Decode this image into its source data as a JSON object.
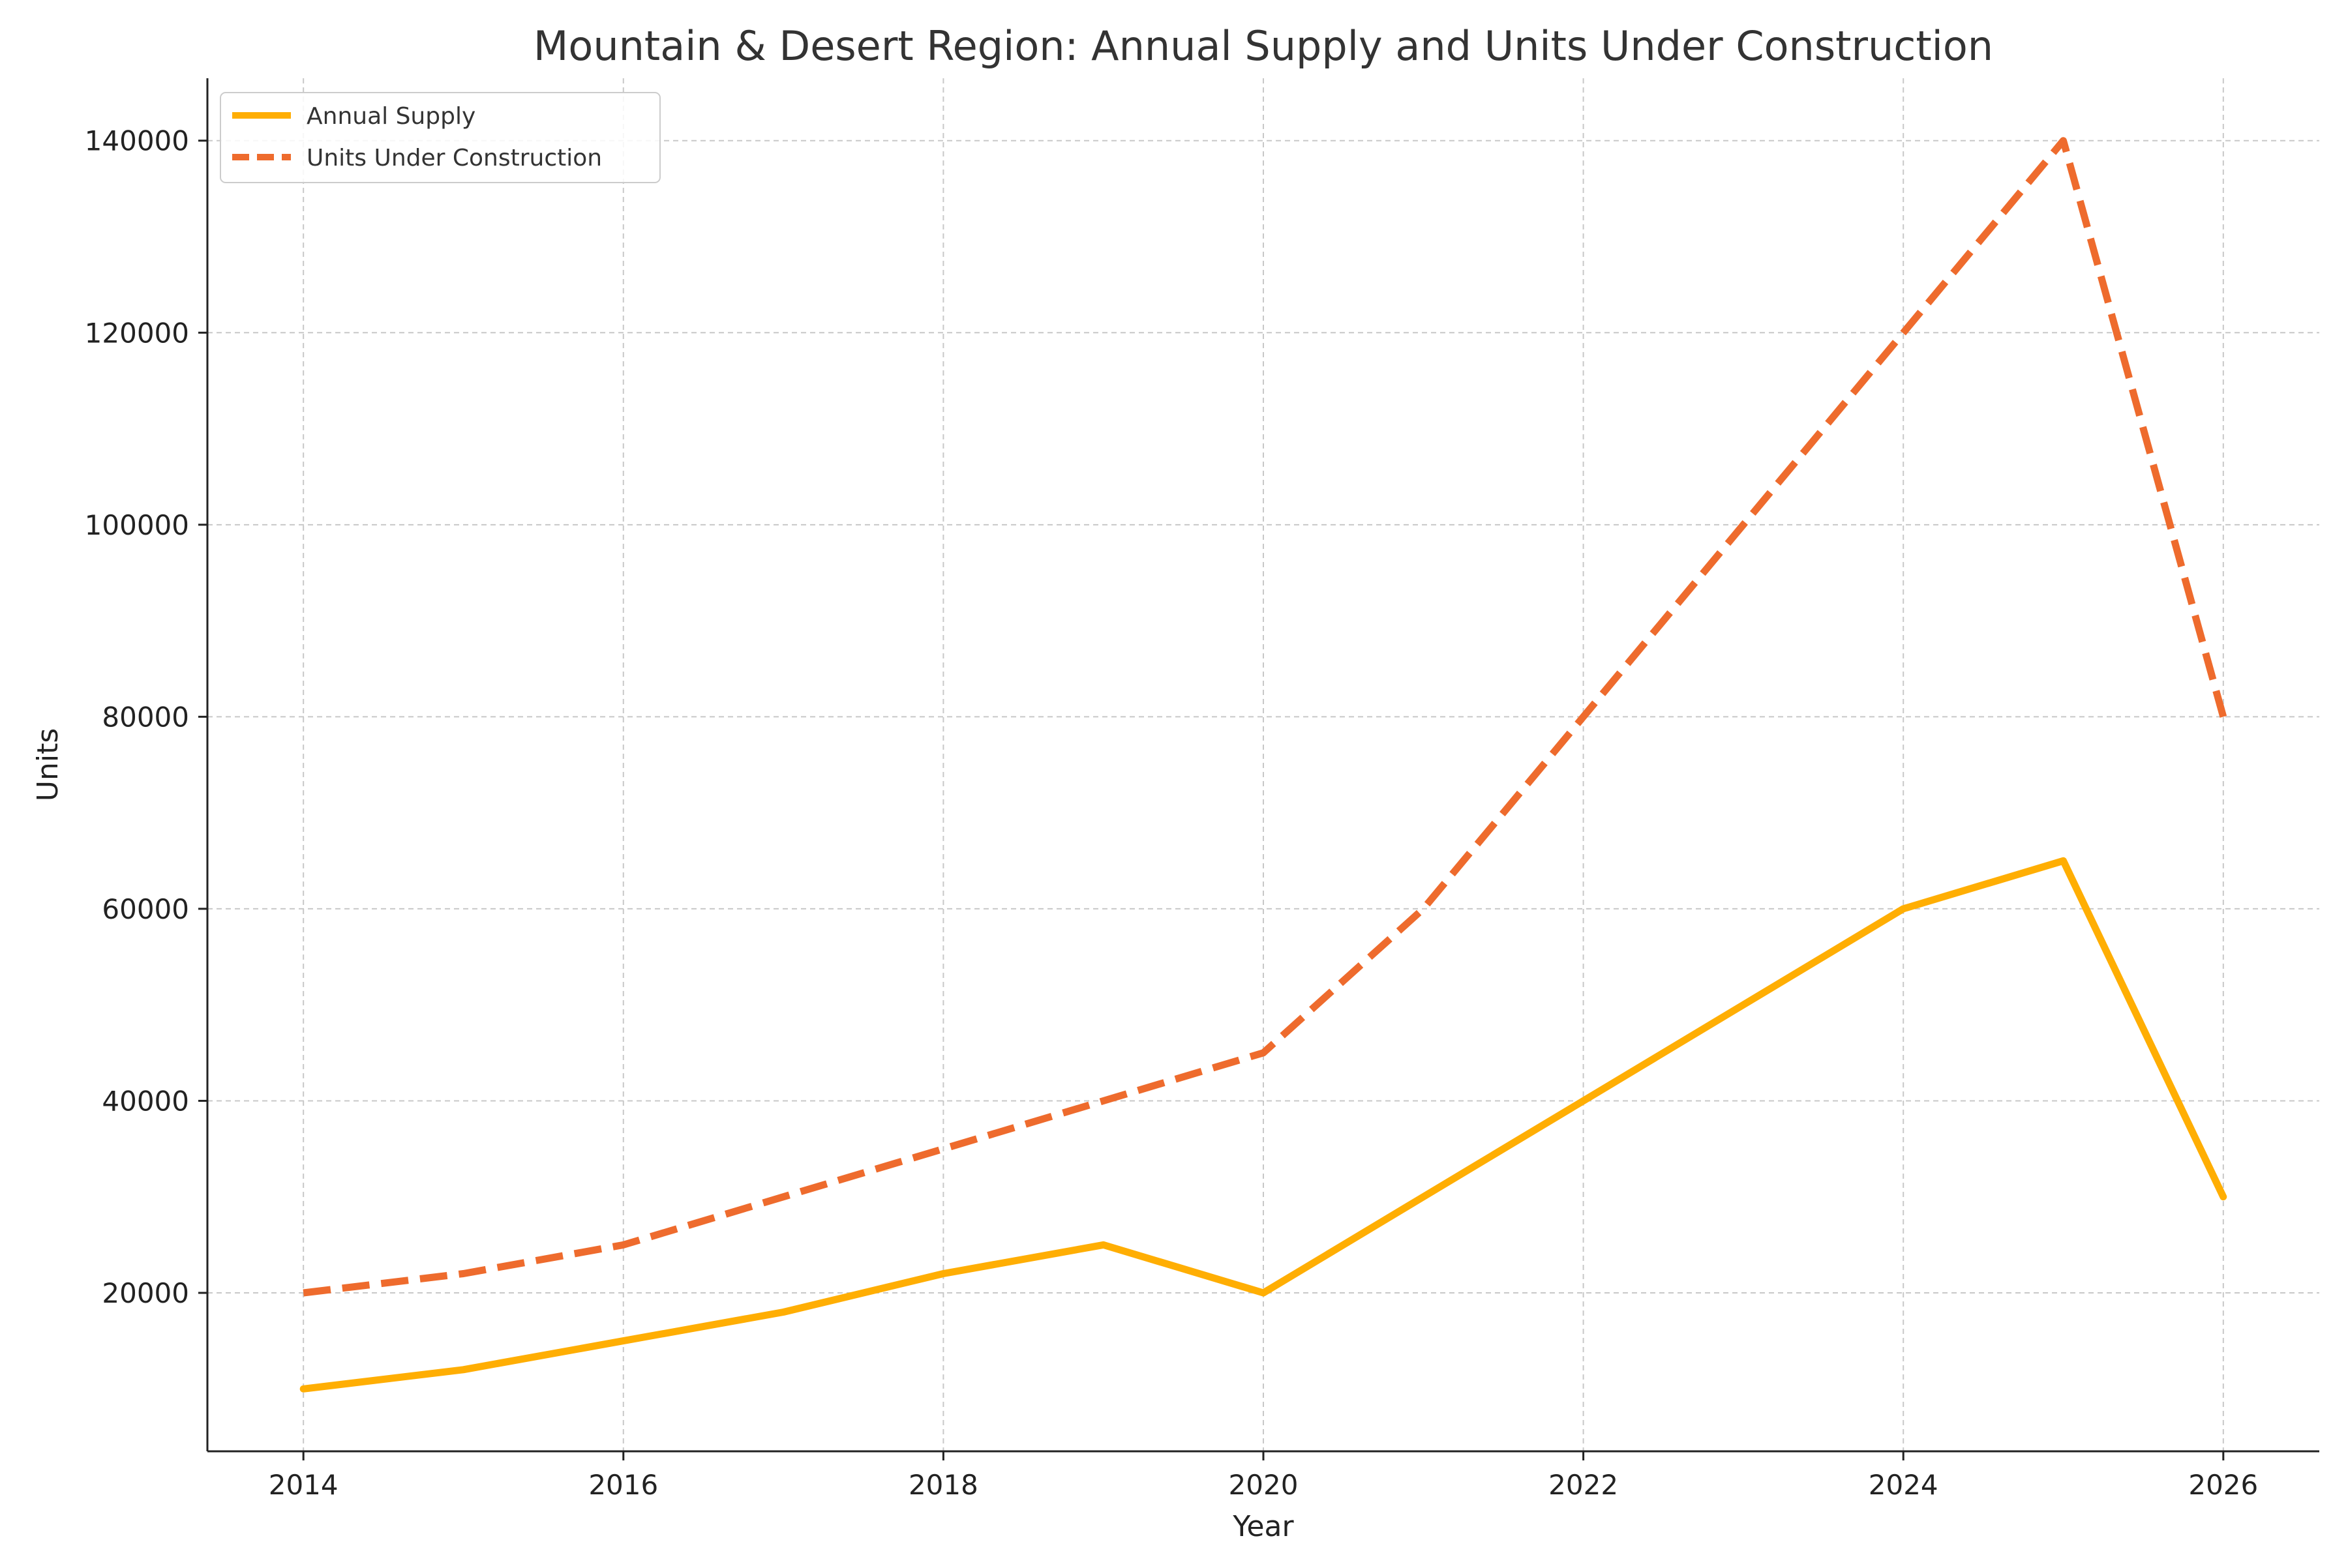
{
  "chart_data": {
    "type": "line",
    "title": "Mountain & Desert Region: Annual Supply and Units Under Construction",
    "xlabel": "Year",
    "ylabel": "Units",
    "x": [
      2014,
      2015,
      2016,
      2017,
      2018,
      2019,
      2020,
      2021,
      2022,
      2023,
      2024,
      2025,
      2026
    ],
    "xlim": [
      2013.4,
      2026.6
    ],
    "ylim": [
      3500,
      146500
    ],
    "xticks": [
      2014,
      2016,
      2018,
      2020,
      2022,
      2024,
      2026
    ],
    "xtick_labels": [
      "2014",
      "2016",
      "2018",
      "2020",
      "2022",
      "2024",
      "2026"
    ],
    "yticks": [
      20000,
      40000,
      60000,
      80000,
      100000,
      120000,
      140000
    ],
    "ytick_labels": [
      "20000",
      "40000",
      "60000",
      "80000",
      "100000",
      "120000",
      "140000"
    ],
    "grid": true,
    "legend_position": "top-left",
    "series": [
      {
        "name": "Annual Supply",
        "style": "solid",
        "color": "#FFAE03",
        "values": [
          10000,
          12000,
          15000,
          18000,
          22000,
          25000,
          20000,
          30000,
          40000,
          50000,
          60000,
          65000,
          30000
        ]
      },
      {
        "name": "Units Under Construction",
        "style": "dashed",
        "color": "#EE6B2D",
        "values": [
          20000,
          22000,
          25000,
          30000,
          35000,
          40000,
          45000,
          60000,
          80000,
          100000,
          120000,
          140000,
          80000
        ]
      }
    ]
  }
}
